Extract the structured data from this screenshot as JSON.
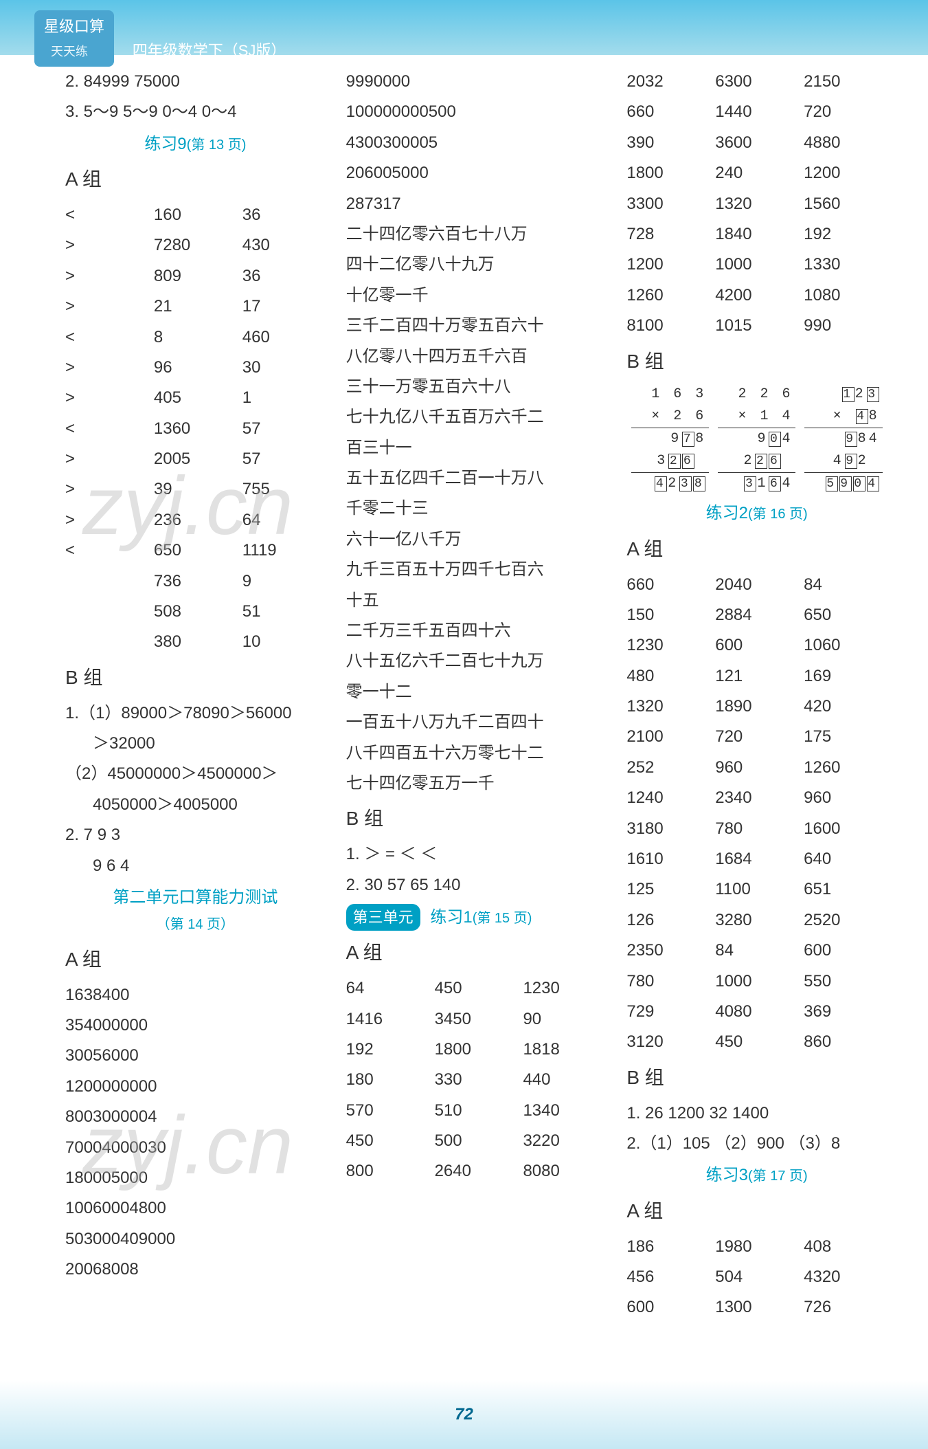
{
  "header": {
    "badge": "星级口算",
    "badge_sub": "天天练",
    "title": "四年级数学下（SJ版）"
  },
  "col1": {
    "top_lines": [
      "2. 84999   75000",
      "3. 5～9   5～9   0～4   0～4"
    ],
    "practice9": {
      "title": "练习9",
      "page": "(第 13 页)"
    },
    "groupA": "A 组",
    "tableA": [
      [
        "<",
        "160",
        "36"
      ],
      [
        ">",
        "7280",
        "430"
      ],
      [
        ">",
        "809",
        "36"
      ],
      [
        ">",
        "21",
        "17"
      ],
      [
        "<",
        "8",
        "460"
      ],
      [
        ">",
        "96",
        "30"
      ],
      [
        ">",
        "405",
        "1"
      ],
      [
        "<",
        "1360",
        "57"
      ],
      [
        ">",
        "2005",
        "57"
      ],
      [
        ">",
        "39",
        "755"
      ],
      [
        ">",
        "236",
        "64"
      ],
      [
        "<",
        "650",
        "1119"
      ],
      [
        "",
        "736",
        "9"
      ],
      [
        "",
        "508",
        "51"
      ],
      [
        "",
        "380",
        "10"
      ]
    ],
    "groupB": "B 组",
    "b_lines": [
      "1.（1）89000＞78090＞56000",
      "＞32000",
      "（2）45000000＞4500000＞",
      "4050000＞4005000",
      "2. 7   9   3",
      "9   6   4"
    ],
    "unit2_test": {
      "title": "第二单元口算能力测试",
      "page": "（第 14 页）"
    },
    "groupA2": "A 组",
    "a2_numbers": [
      "1638400",
      "354000000",
      "30056000",
      "1200000000",
      "8003000004",
      "70004000030",
      "180005000",
      "10060004800",
      "503000409000",
      "20068008"
    ]
  },
  "col2": {
    "top_numbers": [
      "9990000",
      "100000000500",
      "4300300005",
      "206005000",
      "287317"
    ],
    "chinese_numbers": [
      "二十四亿零六百七十八万",
      "四十二亿零八十九万",
      "十亿零一千",
      "三千二百四十万零五百六十",
      "八亿零八十四万五千六百",
      "三十一万零五百六十八",
      "七十九亿八千五百万六千二",
      "百三十一",
      "五十五亿四千二百一十万八",
      "千零二十三",
      "六十一亿八千万",
      "九千三百五十万四千七百六",
      "十五",
      "二千万三千五百四十六",
      "八十五亿六千二百七十九万",
      "零一十二",
      "一百五十八万九千二百四十",
      "八千四百五十六万零七十二",
      "七十四亿零五万一千"
    ],
    "groupB": "B 组",
    "b_lines": [
      "1. ＞   =   ＜   ＜",
      "2. 30   57   65   140"
    ],
    "unit3": {
      "badge": "第三单元",
      "title": "练习1",
      "page": "(第 15 页)"
    },
    "groupA": "A 组",
    "tableA": [
      [
        "64",
        "450",
        "1230"
      ],
      [
        "1416",
        "3450",
        "90"
      ],
      [
        "192",
        "1800",
        "1818"
      ],
      [
        "180",
        "330",
        "440"
      ],
      [
        "570",
        "510",
        "1340"
      ],
      [
        "450",
        "500",
        "3220"
      ],
      [
        "800",
        "2640",
        "8080"
      ]
    ]
  },
  "col3": {
    "top_table": [
      [
        "2032",
        "6300",
        "2150"
      ],
      [
        "660",
        "1440",
        "720"
      ],
      [
        "390",
        "3600",
        "4880"
      ],
      [
        "1800",
        "240",
        "1200"
      ],
      [
        "3300",
        "1320",
        "1560"
      ],
      [
        "728",
        "1840",
        "192"
      ],
      [
        "1200",
        "1000",
        "1330"
      ],
      [
        "1260",
        "4200",
        "1080"
      ],
      [
        "8100",
        "1015",
        "990"
      ]
    ],
    "groupB": "B 组",
    "calcs": [
      {
        "l1": "1 6 3",
        "l2": "×   2 6",
        "l3_plain": "9",
        "l3_box": "7",
        "l3_plain2": "8",
        "l4_plain": "3",
        "l4_box1": "2",
        "l4_box2": "6",
        "l5_box1": "4",
        "l5_plain": "2",
        "l5_box2": "3",
        "l5_box3": "8"
      },
      {
        "l1": "2 2 6",
        "l2": "×   1 4",
        "l3_plain": "9",
        "l3_box": "0",
        "l3_plain2": "4",
        "l4_plain": "2",
        "l4_box1": "2",
        "l4_box2": "6",
        "l5_box1": "3",
        "l5_plain": "1",
        "l5_box2": "6",
        "l5_plain2": "4"
      },
      {
        "l1_box": "1",
        "l1_plain": "2",
        "l1_box2": "3",
        "l2": "×  ",
        "l2_box": "4",
        "l2_plain": "8",
        "l3_box": "9",
        "l3_plain": "8",
        "l3_plain2": "4",
        "l4_plain": "4",
        "l4_box": "9",
        "l4_plain2": "2",
        "l5_box1": "5",
        "l5_box2": "9",
        "l5_box3": "0",
        "l5_box4": "4"
      }
    ],
    "practice2": {
      "title": "练习2",
      "page": "(第 16 页)"
    },
    "groupA": "A 组",
    "tableA": [
      [
        "660",
        "2040",
        "84"
      ],
      [
        "150",
        "2884",
        "650"
      ],
      [
        "1230",
        "600",
        "1060"
      ],
      [
        "480",
        "121",
        "169"
      ],
      [
        "1320",
        "1890",
        "420"
      ],
      [
        "2100",
        "720",
        "175"
      ],
      [
        "252",
        "960",
        "1260"
      ],
      [
        "1240",
        "2340",
        "960"
      ],
      [
        "3180",
        "780",
        "1600"
      ],
      [
        "1610",
        "1684",
        "640"
      ],
      [
        "125",
        "1100",
        "651"
      ],
      [
        "126",
        "3280",
        "2520"
      ],
      [
        "2350",
        "84",
        "600"
      ],
      [
        "780",
        "1000",
        "550"
      ],
      [
        "729",
        "4080",
        "369"
      ],
      [
        "3120",
        "450",
        "860"
      ]
    ],
    "groupB2": "B 组",
    "b2_lines": [
      "1. 26   1200   32   1400",
      "2.（1）105 （2）900 （3）8"
    ],
    "practice3": {
      "title": "练习3",
      "page": "(第 17 页)"
    },
    "groupA2": "A 组",
    "tableA2": [
      [
        "186",
        "1980",
        "408"
      ],
      [
        "456",
        "504",
        "4320"
      ],
      [
        "600",
        "1300",
        "726"
      ]
    ]
  },
  "footer": {
    "page_num": "72"
  },
  "watermark": "zyj.cn"
}
